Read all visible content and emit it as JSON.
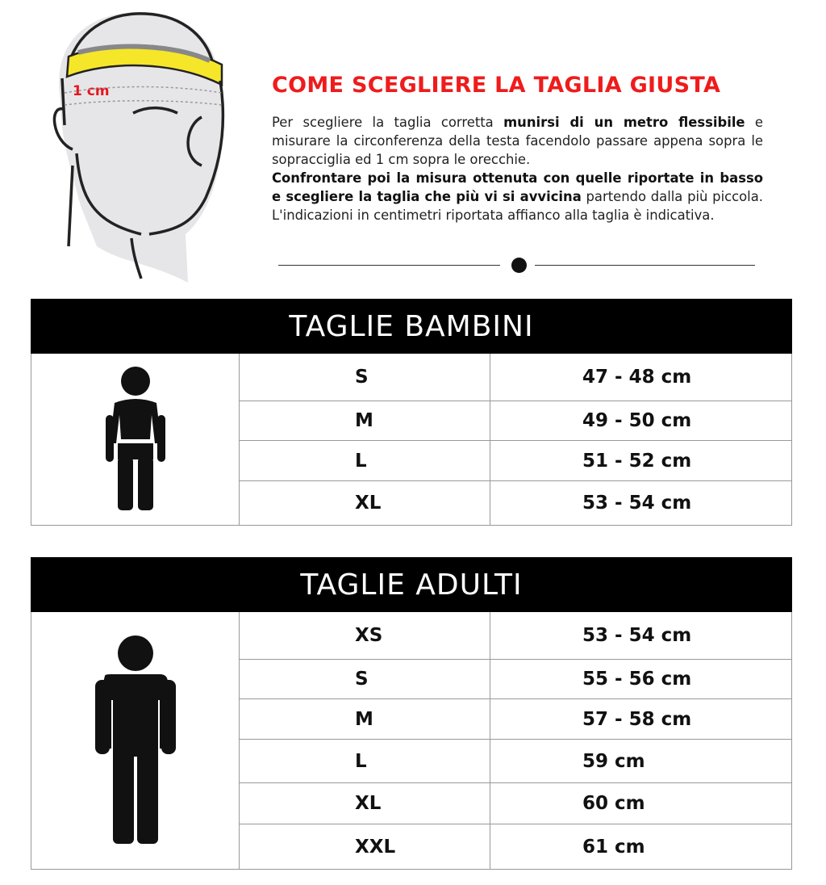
{
  "illustration": {
    "label": "1 cm",
    "tape_color": "#f5e62a",
    "label_color": "#e8141c"
  },
  "header": {
    "title": "COME SCEGLIERE LA TAGLIA GIUSTA",
    "title_color": "#ee1c1c",
    "p1_a": "Per scegliere la taglia corretta ",
    "p1_b": "munirsi di un metro flessibile",
    "p1_c": " e misurare la circonferenza della testa facendolo passare appena sopra le sopracciglia ed 1 cm sopra le orecchie.",
    "p2_a": "Confrontare poi la misura ottenuta con quelle riportate in basso e scegliere la taglia che più vi si avvicina",
    "p2_b": " partendo dalla più piccola. L'indicazioni in centimetri riportata affianco alla taglia è indicativa."
  },
  "kids": {
    "title": "TAGLIE BAMBINI",
    "icon": "child-figure-icon",
    "rows": [
      {
        "size": "S",
        "range": "47 - 48 cm"
      },
      {
        "size": "M",
        "range": "49 - 50 cm"
      },
      {
        "size": "L",
        "range": "51 - 52 cm"
      },
      {
        "size": "XL",
        "range": "53 - 54 cm"
      }
    ]
  },
  "adults": {
    "title": "TAGLIE ADULTI",
    "icon": "adult-figure-icon",
    "rows": [
      {
        "size": "XS",
        "range": "53 - 54 cm"
      },
      {
        "size": "S",
        "range": "55 - 56 cm"
      },
      {
        "size": "M",
        "range": "57 - 58 cm"
      },
      {
        "size": "L",
        "range": "59 cm"
      },
      {
        "size": "XL",
        "range": "60 cm"
      },
      {
        "size": "XXL",
        "range": "61 cm"
      }
    ]
  }
}
